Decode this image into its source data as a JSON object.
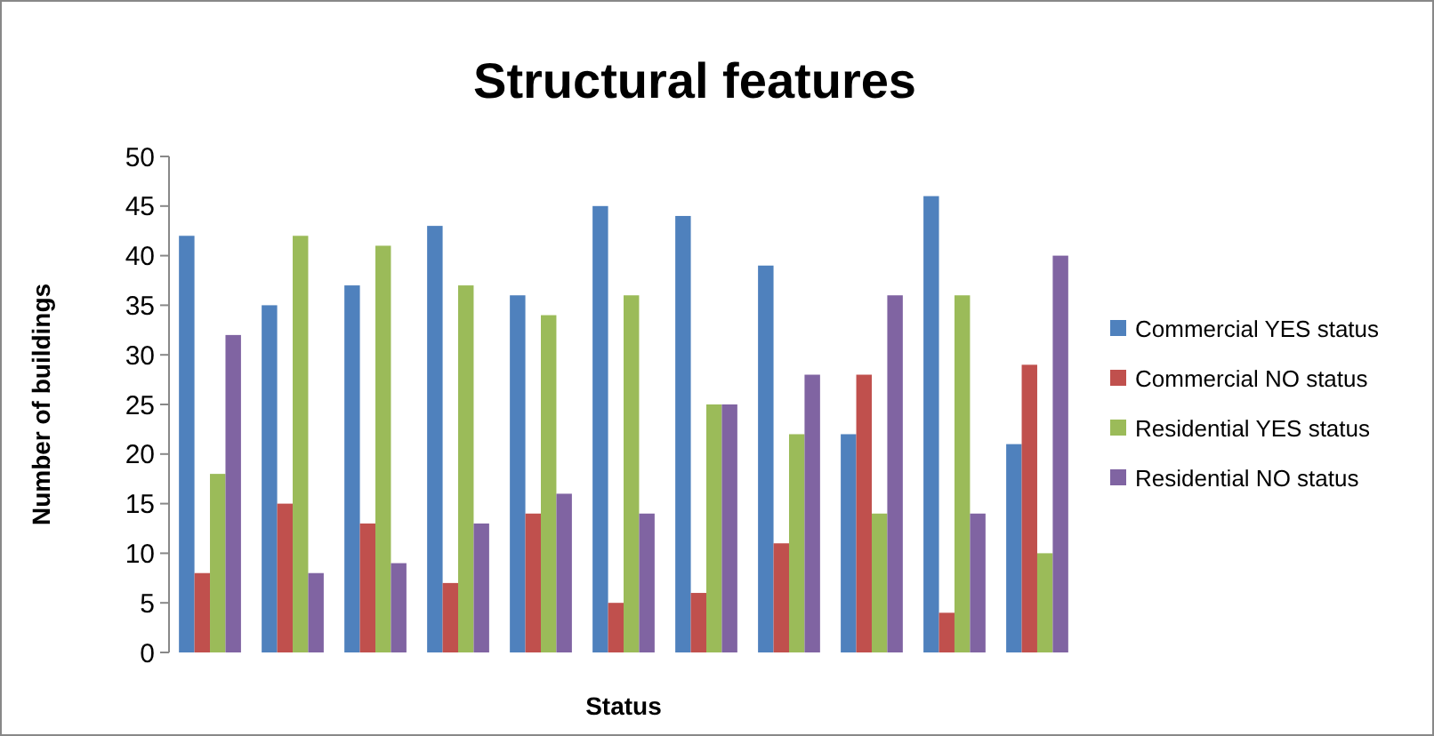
{
  "chart_data": {
    "type": "bar",
    "title": "Structural features",
    "xlabel": "Status",
    "ylabel": "Number of buildings",
    "categories": [
      null,
      null,
      null,
      null,
      null,
      null,
      null,
      null,
      null,
      null,
      null
    ],
    "series": [
      {
        "name": "Commercial YES status",
        "color": "#4f81bd",
        "values": [
          42,
          35,
          37,
          43,
          36,
          45,
          44,
          39,
          22,
          46,
          21
        ]
      },
      {
        "name": "Commercial NO status",
        "color": "#c0504d",
        "values": [
          8,
          15,
          13,
          7,
          14,
          5,
          6,
          11,
          28,
          4,
          29
        ]
      },
      {
        "name": "Residential YES status",
        "color": "#9bbb59",
        "values": [
          18,
          42,
          41,
          37,
          34,
          36,
          25,
          22,
          14,
          36,
          10
        ]
      },
      {
        "name": "Residential NO status",
        "color": "#8064a2",
        "values": [
          32,
          8,
          9,
          13,
          16,
          14,
          25,
          28,
          36,
          14,
          40
        ]
      }
    ],
    "ylim": [
      0,
      50
    ],
    "yticks": [
      0,
      5,
      10,
      15,
      20,
      25,
      30,
      35,
      40,
      45,
      50
    ],
    "grid": false,
    "legend": "right"
  }
}
